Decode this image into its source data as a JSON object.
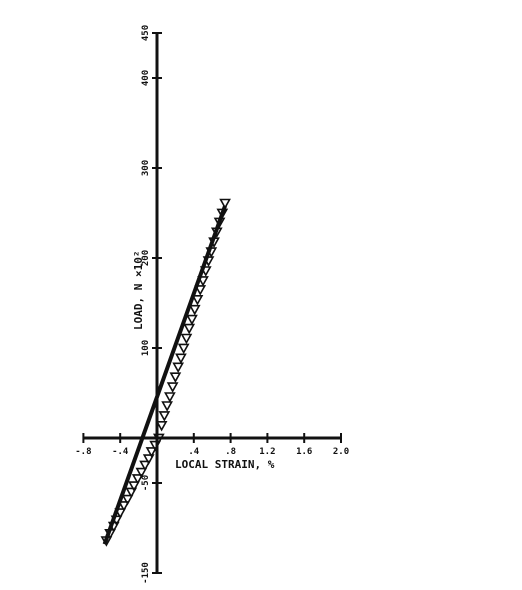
{
  "chart_data": {
    "type": "scatter",
    "xlabel": "LOCAL STRAIN, %",
    "ylabel": "LOAD, N ×10²",
    "xlim": [
      -0.8,
      2.0
    ],
    "ylim": [
      -150,
      450
    ],
    "x_ticks": [
      -0.8,
      -0.4,
      0.4,
      0.8,
      1.2,
      1.6,
      2.0
    ],
    "x_tick_labels": [
      "-.8",
      "-.4",
      ".4",
      ".8",
      "1.2",
      "1.6",
      "2.0"
    ],
    "y_ticks": [
      -150,
      -50,
      100,
      200,
      300,
      400,
      450
    ],
    "y_tick_labels": [
      "-150",
      "-50",
      "100",
      "200",
      "300",
      "400",
      "450"
    ],
    "series": [
      {
        "marker": "triangle-down",
        "x": [
          -0.55,
          -0.51,
          -0.47,
          -0.44,
          -0.4,
          -0.36,
          -0.32,
          -0.28,
          -0.25,
          -0.21,
          -0.17,
          -0.13,
          -0.09,
          -0.06,
          -0.02,
          0.02,
          0.05,
          0.08,
          0.11,
          0.14,
          0.17,
          0.2,
          0.23,
          0.26,
          0.29,
          0.32,
          0.35,
          0.38,
          0.41,
          0.44,
          0.47,
          0.5,
          0.53,
          0.56,
          0.59,
          0.62,
          0.65,
          0.68,
          0.71,
          0.74
        ],
        "y": [
          -114,
          -106,
          -98,
          -91,
          -83,
          -75,
          -68,
          -60,
          -53,
          -45,
          -38,
          -30,
          -23,
          -15,
          -8,
          0,
          14,
          25,
          36,
          46,
          57,
          68,
          79,
          89,
          100,
          111,
          122,
          132,
          143,
          154,
          165,
          175,
          186,
          197,
          207,
          218,
          229,
          240,
          250,
          261
        ]
      }
    ],
    "fit_line": {
      "x": [
        -0.57,
        0.74
      ],
      "y": [
        -118,
        258
      ]
    }
  }
}
